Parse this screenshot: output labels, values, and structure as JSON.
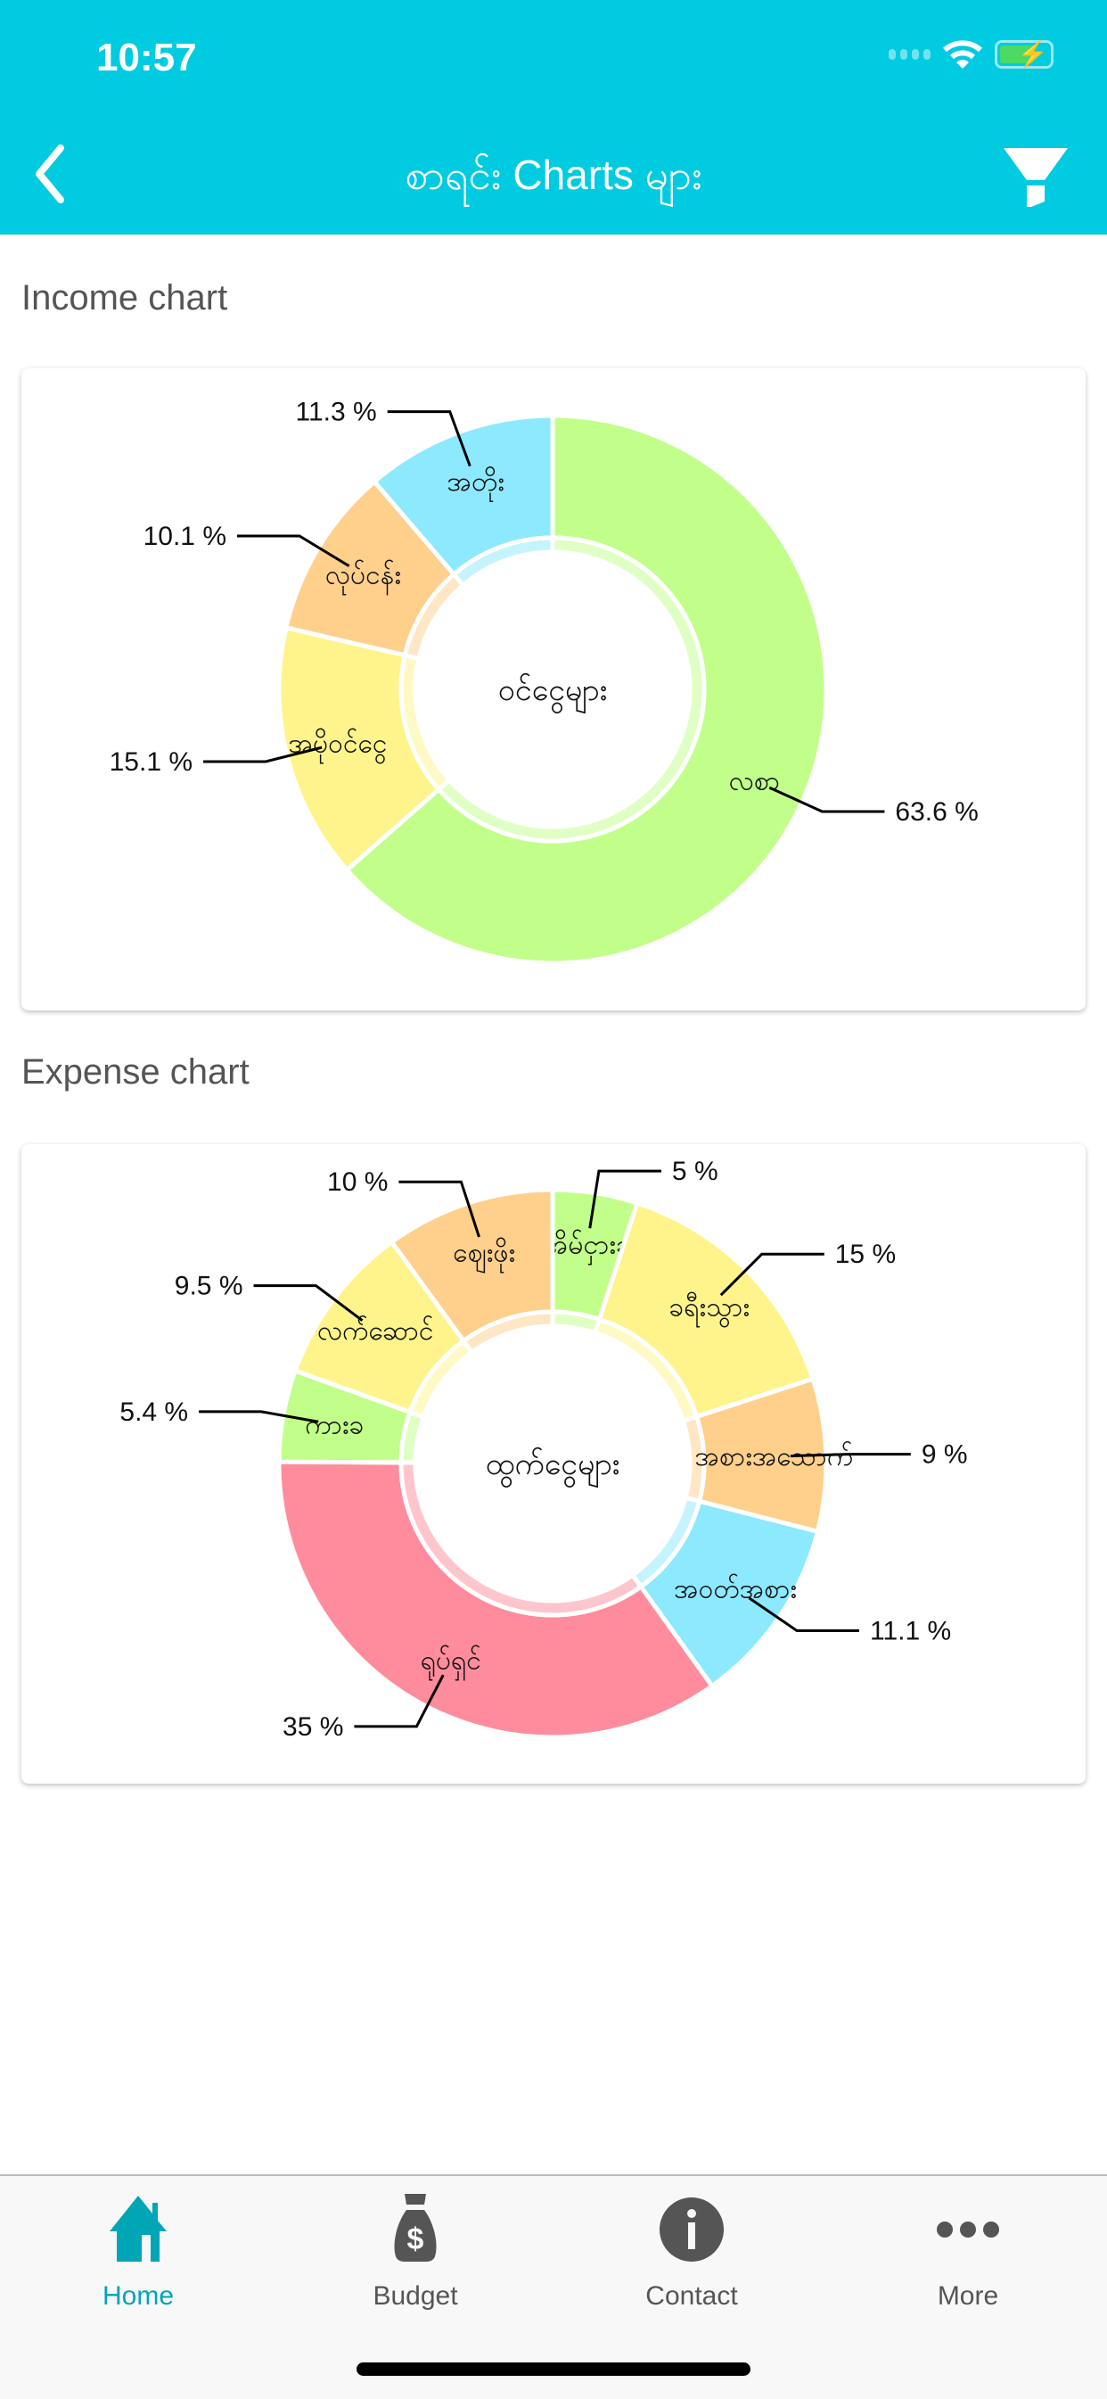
{
  "status_bar": {
    "time": "10:57"
  },
  "header": {
    "title": "စာရင်း Charts များ",
    "back_icon": "chevron-left-icon",
    "filter_icon": "filter-icon"
  },
  "sections": {
    "income_label": "Income chart",
    "expense_label": "Expense chart"
  },
  "chart_data": [
    {
      "type": "pie",
      "variant": "donut",
      "title": "Income chart",
      "center_label": "ဝင်ငွေများ",
      "slices": [
        {
          "label": "လစာ",
          "value": 63.6,
          "percent_label": "63.6 %",
          "color": "#c1ff8a"
        },
        {
          "label": "အပိုဝင်ငွေ",
          "value": 15.1,
          "percent_label": "15.1 %",
          "color": "#fff48c"
        },
        {
          "label": "လုပ်ငန်း",
          "value": 10.1,
          "percent_label": "10.1 %",
          "color": "#ffcf8c"
        },
        {
          "label": "အတိုး",
          "value": 11.3,
          "percent_label": "11.3 %",
          "color": "#8de9fd"
        }
      ]
    },
    {
      "type": "pie",
      "variant": "donut",
      "title": "Expense chart",
      "center_label": "ထွက်ငွေများ",
      "slices": [
        {
          "label": "အိမ်ငှားခ",
          "value": 5,
          "percent_label": "5 %",
          "color": "#c1ff8a"
        },
        {
          "label": "ခရီးသွား",
          "value": 15,
          "percent_label": "15 %",
          "color": "#fff48c"
        },
        {
          "label": "အစားအသောက်",
          "value": 9,
          "percent_label": "9 %",
          "color": "#ffcf8c"
        },
        {
          "label": "အဝတ်အစား",
          "value": 11.1,
          "percent_label": "11.1 %",
          "color": "#8de9fd"
        },
        {
          "label": "ရုပ်ရှင်",
          "value": 35,
          "percent_label": "35 %",
          "color": "#ff8c9c"
        },
        {
          "label": "ကားခ",
          "value": 5.4,
          "percent_label": "5.4 %",
          "color": "#c1ff8a"
        },
        {
          "label": "လက်ဆောင်",
          "value": 9.5,
          "percent_label": "9.5 %",
          "color": "#fff48c"
        },
        {
          "label": "ဈေးဖိုး",
          "value": 10,
          "percent_label": "10 %",
          "color": "#ffcf8c"
        }
      ]
    }
  ],
  "bottom_nav": [
    {
      "label": "Home",
      "icon": "home-icon",
      "active": true
    },
    {
      "label": "Budget",
      "icon": "money-bag-icon",
      "active": false
    },
    {
      "label": "Contact",
      "icon": "info-icon",
      "active": false
    },
    {
      "label": "More",
      "icon": "more-icon",
      "active": false
    }
  ],
  "colors": {
    "accent": "#00cbe0",
    "nav_active": "#00a5b6"
  }
}
